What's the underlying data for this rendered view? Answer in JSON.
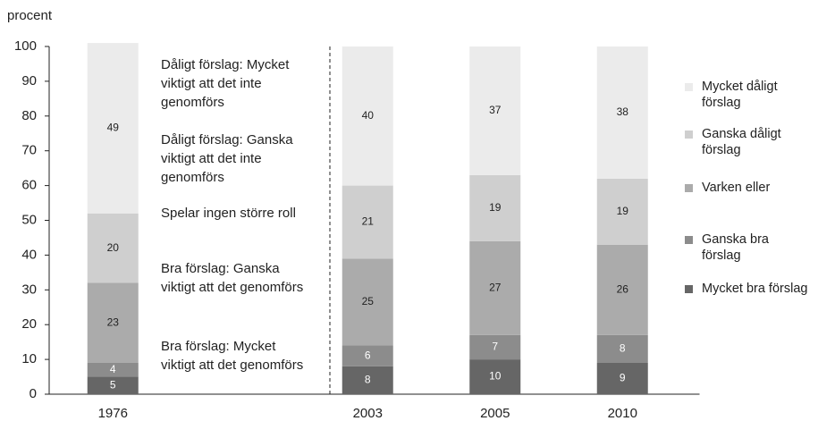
{
  "chart_data": {
    "type": "stacked_bar",
    "ylabel": "procent",
    "categories": [
      "1976",
      null,
      "2003",
      "2005",
      "2010"
    ],
    "series": [
      {
        "name": "Mycket bra förslag",
        "color": "#666666",
        "values": [
          5,
          null,
          8,
          10,
          9
        ]
      },
      {
        "name": "Ganska bra förslag",
        "color": "#8c8c8c",
        "values": [
          4,
          null,
          6,
          7,
          8
        ]
      },
      {
        "name": "Varken eller",
        "color": "#ababab",
        "values": [
          23,
          null,
          25,
          27,
          26
        ]
      },
      {
        "name": "Ganska dåligt förslag",
        "color": "#cfcfcf",
        "values": [
          20,
          null,
          21,
          19,
          19
        ]
      },
      {
        "name": "Mycket dåligt förslag",
        "color": "#ebebeb",
        "values": [
          49,
          null,
          40,
          37,
          38
        ]
      }
    ],
    "annotations": [
      "Dåligt förslag: Mycket viktigt att det inte genomförs",
      "Dåligt förslag: Ganska viktigt att det inte genomförs",
      "Spelar ingen större roll",
      "Bra förslag: Ganska viktigt att det genomförs",
      "Bra förslag: Mycket viktigt att det genomförs"
    ],
    "ylim": [
      0,
      100
    ],
    "yticks": [
      0,
      10,
      20,
      30,
      40,
      50,
      60,
      70,
      80,
      90,
      100
    ],
    "legend": "right"
  }
}
